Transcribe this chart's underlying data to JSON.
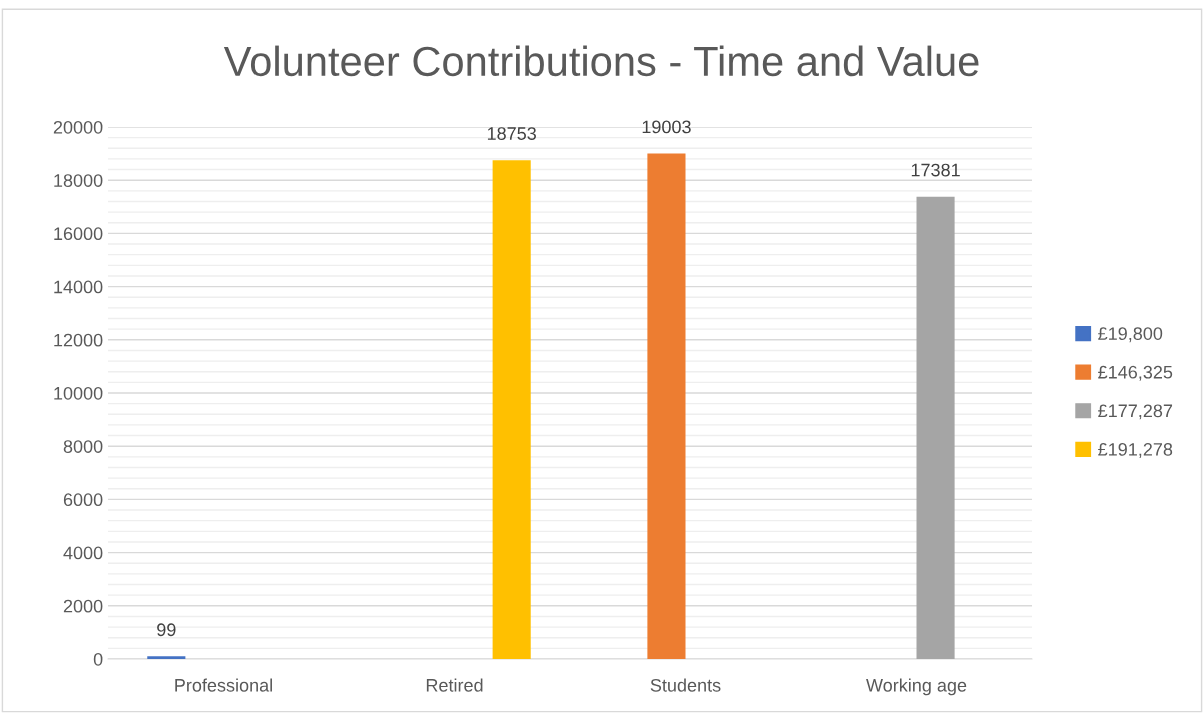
{
  "chart_data": {
    "type": "bar",
    "title": "Volunteer Contributions - Time and Value",
    "categories": [
      "Professional",
      "Retired",
      "Students",
      "Working age"
    ],
    "series": [
      {
        "name": "£19,800",
        "color": "#4472c4",
        "values": [
          99,
          null,
          null,
          null
        ]
      },
      {
        "name": "£146,325",
        "color": "#ed7d31",
        "values": [
          null,
          null,
          19003,
          null
        ]
      },
      {
        "name": "£177,287",
        "color": "#a5a5a5",
        "values": [
          null,
          null,
          null,
          17381
        ]
      },
      {
        "name": "£191,278",
        "color": "#ffc000",
        "values": [
          null,
          18753,
          null,
          null
        ]
      }
    ],
    "ylim": [
      0,
      20000
    ],
    "yticks": [
      0,
      2000,
      4000,
      6000,
      8000,
      10000,
      12000,
      14000,
      16000,
      18000,
      20000
    ],
    "grid": "y",
    "legend": "right",
    "data_labels": true
  }
}
